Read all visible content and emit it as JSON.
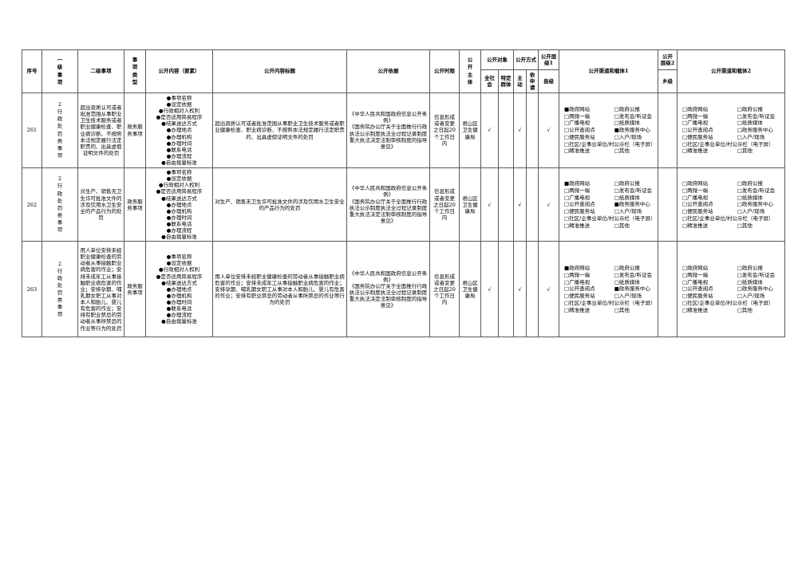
{
  "page": {
    "background": "#ffffff",
    "border_color": "#595959",
    "text_color": "#000000",
    "check_glyph": "√",
    "checked_glyph": "■",
    "unchecked_glyph": "□",
    "bullet_glyph": "●"
  },
  "table": {
    "headers": {
      "seq": "序号",
      "level1_item": "一级事项",
      "level2_item": "二级事项",
      "item_type": "事项类型",
      "content_elements": "公开内容（要素）",
      "content_title": "公开内容标题",
      "basis": "公开依据",
      "time_limit": "公开时限",
      "subject": "公开主体",
      "target_group": "公开对象",
      "target_all": "全社会",
      "target_specific": "特定群体",
      "method_group": "公开方式",
      "method_active": "主动",
      "method_on_request": "依申请",
      "level1_group": "公开层级1",
      "level1_county": "县级",
      "channels1": "公开渠道和载体1",
      "level2_group": "公开层级2",
      "level2_township": "乡级",
      "channels2": "公开渠道和载体2"
    },
    "channel_options": [
      {
        "label": "政府网站"
      },
      {
        "label": "政府公报"
      },
      {
        "label": "两微一端"
      },
      {
        "label": "发布会/听证会"
      },
      {
        "label": "广播电视"
      },
      {
        "label": "纸质媒体"
      },
      {
        "label": "公开查阅点"
      },
      {
        "label": "政务服务中心"
      },
      {
        "label": "便民服务站"
      },
      {
        "label": "入户/现场"
      },
      {
        "label": "社区/企事业单位/村公示栏（电子屏）",
        "wide": true
      },
      {
        "label": "精准推送"
      },
      {
        "label": "其他"
      }
    ],
    "rows": [
      {
        "seq": "261",
        "level1": "2行政处罚类事项",
        "level2": "超出资质认可或者批准范围从事职业卫生技术服务或者职业健康检查、职业病诊断、不按照本法规定履行法定职责的、出具虚假证明文件的处罚",
        "item_type": "政务服务事项",
        "content_elements": [
          "事项名称",
          "设定依据",
          "行政相对人权利",
          "是否适用简易程序",
          "结果送达方式",
          "办理地点",
          "办理机构",
          "办理时间",
          "联系电话",
          "办理流程",
          "自由裁量标准"
        ],
        "content_title": "超出资质认可或者批准范围从事职业卫生技术服务或者职业健康检查、职业病诊断、不按照本法规定履行法定职责的、出具虚假证明文件的处罚",
        "basis": "《中华人民共和国政府信息公开条例》\n《国务院办公厅关于全面推行行政执法公示制度执法全过程记录制度重大执法决定法制审核制度的指导意见》",
        "time_limit": "信息形成或者变更之日起20个工作日内",
        "subject": "君山区卫生健康局",
        "target_all": "√",
        "target_specific": "",
        "method_active": "√",
        "method_on_request": "",
        "county": "√",
        "township": "",
        "channels1_checked": [
          "政府网站",
          "政务服务中心"
        ],
        "channels2_checked": []
      },
      {
        "seq": "262",
        "level1": "2行政处罚类事项",
        "level2": "对生产、销售无卫生许可批准文件的涉及饮用水卫生安全的产品行为的处罚",
        "item_type": "政务服务事项",
        "content_elements": [
          "事项名称",
          "设定依据",
          "行政相对人权利",
          "是否适用简易程序",
          "结果送达方式",
          "办理地点",
          "办理机构",
          "办理时间",
          "联系电话",
          "办理流程",
          "自由裁量标准"
        ],
        "content_title": "对生产、销售无卫生许可批准文件的涉及饮用水卫生安全的产品行为的处罚",
        "basis": "《中华人民共和国政府信息公开条例》\n《国务院办公厅关于全面推行行政执法公示制度执法全过程记录制度重大执法决定法制审核制度的指导意见》",
        "time_limit": "信息形成或者变更之日起20个工作日内",
        "subject": "君山区卫生健康局",
        "target_all": "√",
        "target_specific": "",
        "method_active": "√",
        "method_on_request": "",
        "county": "√",
        "township": "",
        "channels1_checked": [
          "政府网站",
          "政务服务中心"
        ],
        "channels2_checked": []
      },
      {
        "seq": "263",
        "level1": "2行政处罚类事项",
        "level2": "用人单位安排未经职业健康检查的劳动者从事接触职业病危害的作业；安排未成年工从事接触职业病危害的作业；安排孕期、哺乳期女职工从事对本人和胎儿、婴儿有危害的作业；安排有职业禁忌的劳动者从事所禁忌的作业等行为的处罚",
        "item_type": "政务服务事项",
        "content_elements": [
          "事项名称",
          "设定依据",
          "行政相对人权利",
          "是否适用简易程序",
          "结果送达方式",
          "办理地点",
          "办理机构",
          "办理时间",
          "联系电话",
          "办理流程",
          "自由裁量标准"
        ],
        "content_title": "用人单位安排未经职业健康检查的劳动者从事接触职业病危害的作业；安排未成年工从事接触职业病危害的作业；安排孕期、哺乳期女职工从事对本人和胎儿、婴儿有危害的作业；安排有职业禁忌的劳动者从事所禁忌的作业等行为的处罚",
        "basis": "《中华人民共和国政府信息公开条例》\n《国务院办公厅关于全面推行行政执法公示制度执法全过程记录制度重大执法决定法制审核制度的指导意见》",
        "time_limit": "信息形成或者变更之日起20个工作日内",
        "subject": "君山区卫生健康局",
        "target_all": "√",
        "target_specific": "",
        "method_active": "√",
        "method_on_request": "",
        "county": "√",
        "township": "",
        "channels1_checked": [
          "政府网站",
          "政务服务中心"
        ],
        "channels2_checked": []
      }
    ]
  }
}
